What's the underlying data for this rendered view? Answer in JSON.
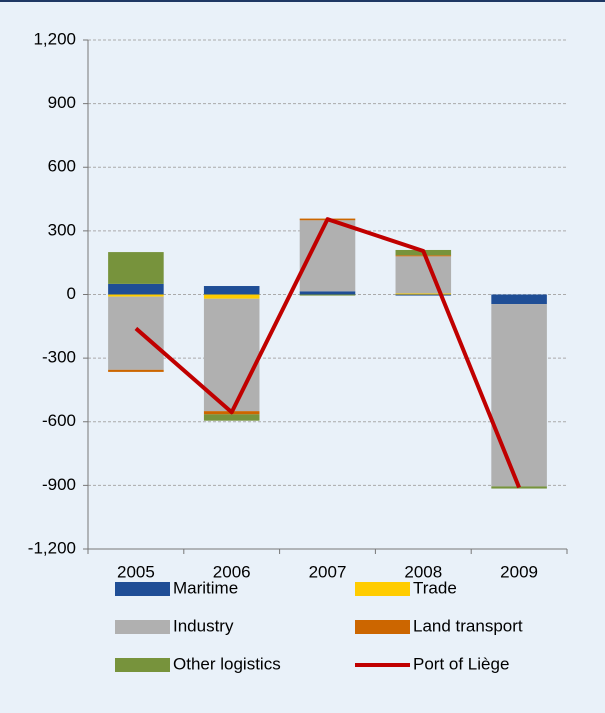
{
  "chart_data": {
    "type": "bar",
    "stacked": true,
    "categories": [
      "2005",
      "2006",
      "2007",
      "2008",
      "2009"
    ],
    "series": [
      {
        "name": "Maritime",
        "color": "#1f4e96",
        "values": [
          50,
          40,
          15,
          -5,
          -45
        ]
      },
      {
        "name": "Trade",
        "color": "#ffcc00",
        "values": [
          -10,
          -20,
          0,
          5,
          0
        ]
      },
      {
        "name": "Industry",
        "color": "#b0b0b0",
        "values": [
          -345,
          -530,
          335,
          175,
          -860
        ]
      },
      {
        "name": "Land transport",
        "color": "#cc6600",
        "values": [
          -10,
          -15,
          8,
          5,
          0
        ]
      },
      {
        "name": "Other logistics",
        "color": "#77933c",
        "values": [
          150,
          -30,
          -5,
          25,
          -10
        ]
      },
      {
        "name": "Port of Liège",
        "color": "#c00000",
        "type": "line",
        "values": [
          -160,
          -555,
          355,
          205,
          -910
        ]
      }
    ],
    "ylim": [
      -1200,
      1200
    ],
    "yticks": [
      {
        "value": -1200,
        "label": "-1,200"
      },
      -900,
      -600,
      -300,
      0,
      300,
      600,
      900,
      {
        "value": 1200,
        "label": "1,200"
      }
    ],
    "grid": true,
    "legend": "bottom"
  }
}
